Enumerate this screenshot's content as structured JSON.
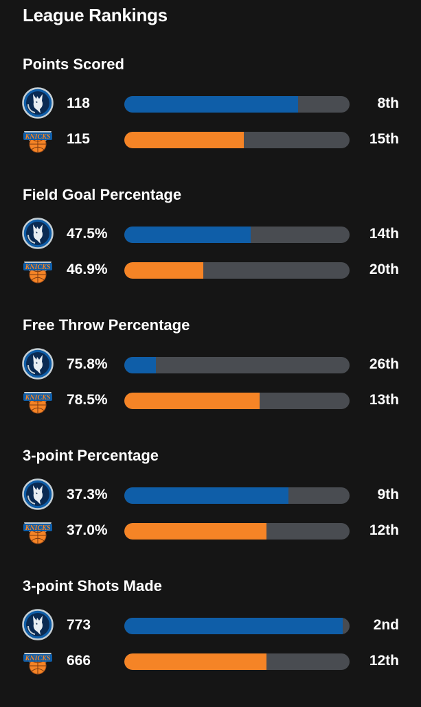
{
  "page": {
    "title": "League Rankings"
  },
  "colors": {
    "background": "#151515",
    "track": "#494c51",
    "mavericks": "#0f5ea8",
    "knicks": "#f58426"
  },
  "teams": {
    "mavericks": {
      "logo_icon": "dallas-mavericks-logo-icon"
    },
    "knicks": {
      "logo_icon": "new-york-knicks-logo-icon",
      "logo_text": "KNICKS"
    }
  },
  "sections": [
    {
      "title": "Points Scored",
      "rows": [
        {
          "team": "mavericks",
          "value": "118",
          "rank": "8th",
          "bar_fraction": 0.77
        },
        {
          "team": "knicks",
          "value": "115",
          "rank": "15th",
          "bar_fraction": 0.53
        }
      ]
    },
    {
      "title": "Field Goal Percentage",
      "rows": [
        {
          "team": "mavericks",
          "value": "47.5%",
          "rank": "14th",
          "bar_fraction": 0.56
        },
        {
          "team": "knicks",
          "value": "46.9%",
          "rank": "20th",
          "bar_fraction": 0.35
        }
      ]
    },
    {
      "title": "Free Throw Percentage",
      "rows": [
        {
          "team": "mavericks",
          "value": "75.8%",
          "rank": "26th",
          "bar_fraction": 0.14
        },
        {
          "team": "knicks",
          "value": "78.5%",
          "rank": "13th",
          "bar_fraction": 0.6
        }
      ]
    },
    {
      "title": "3-point Percentage",
      "rows": [
        {
          "team": "mavericks",
          "value": "37.3%",
          "rank": "9th",
          "bar_fraction": 0.73
        },
        {
          "team": "knicks",
          "value": "37.0%",
          "rank": "12th",
          "bar_fraction": 0.63
        }
      ]
    },
    {
      "title": "3-point Shots Made",
      "rows": [
        {
          "team": "mavericks",
          "value": "773",
          "rank": "2nd",
          "bar_fraction": 0.97
        },
        {
          "team": "knicks",
          "value": "666",
          "rank": "12th",
          "bar_fraction": 0.63
        }
      ]
    }
  ]
}
